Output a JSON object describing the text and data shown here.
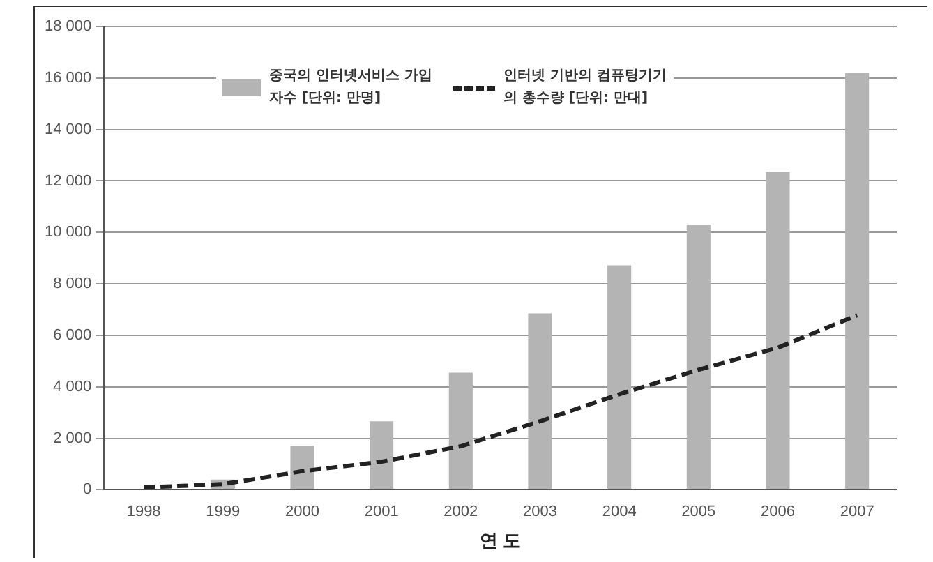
{
  "chart_data": {
    "type": "bar",
    "xlabel": "연 도",
    "categories": [
      "1998",
      "1999",
      "2000",
      "2001",
      "2002",
      "2003",
      "2004",
      "2005",
      "2006",
      "2007"
    ],
    "series": [
      {
        "name": "중국의 인터넷서비스 가입자수 [단위: 만명]",
        "color": "#b4b4b4",
        "values": [
          null,
          400,
          1710,
          2660,
          4550,
          6850,
          8720,
          10300,
          12350,
          16200
        ]
      },
      {
        "name": "인터넷 기반의 컴퓨팅기기의 총수량 [단위: 만대]",
        "type": "line",
        "color": "#222222",
        "line_style": "dashed",
        "values": [
          90,
          220,
          720,
          1090,
          1690,
          2660,
          3710,
          4660,
          5520,
          6780
        ]
      }
    ],
    "ylim": [
      0,
      18000
    ],
    "yticks": [
      {
        "value": 0,
        "label": "0"
      },
      {
        "value": 2000,
        "label": "2 000"
      },
      {
        "value": 4000,
        "label": "4 000"
      },
      {
        "value": 6000,
        "label": "6 000"
      },
      {
        "value": 8000,
        "label": "8 000"
      },
      {
        "value": 10000,
        "label": "10 000"
      },
      {
        "value": 12000,
        "label": "12 000"
      },
      {
        "value": 14000,
        "label": "14 000"
      },
      {
        "value": 16000,
        "label": "16 000"
      },
      {
        "value": 18000,
        "label": "18 000"
      }
    ],
    "grid": "y",
    "legend": "top left"
  }
}
